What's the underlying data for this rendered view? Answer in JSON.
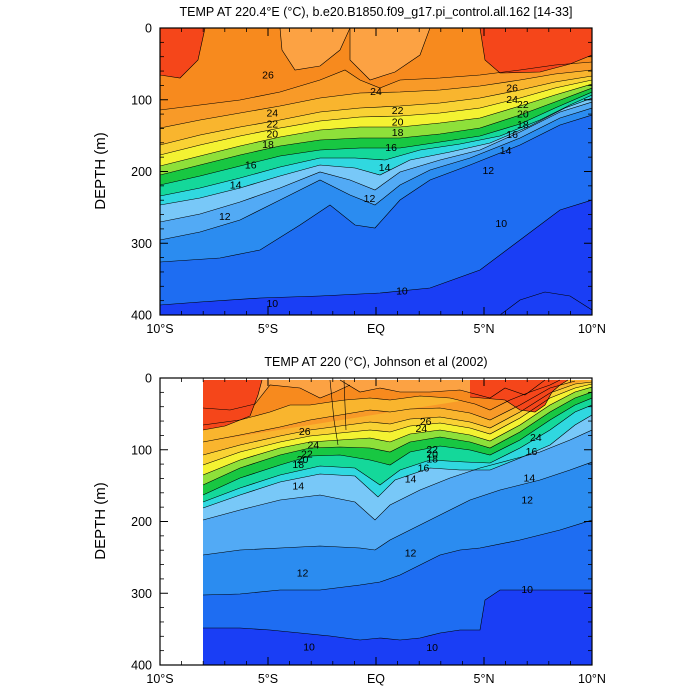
{
  "chart_data": [
    {
      "type": "contour",
      "title": "TEMP AT 220.4°E (°C), b.e20.B1850.f09_g17.pi_control.all.162 [14-33]",
      "ylabel": "DEPTH (m)",
      "xlabel": "",
      "x_ticks": [
        "10°S",
        "5°S",
        "EQ",
        "5°N",
        "10°N"
      ],
      "x_tick_values": [
        -10,
        -5,
        0,
        5,
        10
      ],
      "y_ticks": [
        "0",
        "100",
        "200",
        "300",
        "400"
      ],
      "y_tick_values": [
        0,
        100,
        200,
        300,
        400
      ],
      "xlim": [
        -10,
        10
      ],
      "ylim": [
        400,
        0
      ],
      "contour_interval": 1,
      "contour_labels": [
        {
          "text": "26",
          "x": -5.0,
          "y": 65
        },
        {
          "text": "26",
          "x": 6.3,
          "y": 83
        },
        {
          "text": "24",
          "x": 0.0,
          "y": 88
        },
        {
          "text": "24",
          "x": -4.8,
          "y": 118
        },
        {
          "text": "24",
          "x": 6.3,
          "y": 99
        },
        {
          "text": "22",
          "x": 1.0,
          "y": 114
        },
        {
          "text": "22",
          "x": -4.8,
          "y": 133
        },
        {
          "text": "22",
          "x": 6.8,
          "y": 106
        },
        {
          "text": "20",
          "x": 1.0,
          "y": 130
        },
        {
          "text": "20",
          "x": -4.8,
          "y": 147
        },
        {
          "text": "20",
          "x": 6.8,
          "y": 119
        },
        {
          "text": "18",
          "x": 1.0,
          "y": 145
        },
        {
          "text": "18",
          "x": -5.0,
          "y": 162
        },
        {
          "text": "18",
          "x": 6.8,
          "y": 134
        },
        {
          "text": "16",
          "x": 0.7,
          "y": 166
        },
        {
          "text": "16",
          "x": -5.8,
          "y": 190
        },
        {
          "text": "16",
          "x": 6.3,
          "y": 148
        },
        {
          "text": "14",
          "x": 6.0,
          "y": 170
        },
        {
          "text": "14",
          "x": -6.5,
          "y": 218
        },
        {
          "text": "14",
          "x": 0.4,
          "y": 194
        },
        {
          "text": "12",
          "x": 5.2,
          "y": 198
        },
        {
          "text": "12",
          "x": -0.3,
          "y": 237
        },
        {
          "text": "12",
          "x": -7.0,
          "y": 262
        },
        {
          "text": "10",
          "x": 5.8,
          "y": 272
        },
        {
          "text": "10",
          "x": 1.2,
          "y": 366
        },
        {
          "text": "10",
          "x": -4.8,
          "y": 383
        }
      ]
    },
    {
      "type": "contour",
      "title": "TEMP AT 220 (°C), Johnson et al (2002)",
      "ylabel": "DEPTH (m)",
      "xlabel": "",
      "x_ticks": [
        "10°S",
        "5°S",
        "EQ",
        "5°N",
        "10°N"
      ],
      "x_tick_values": [
        -10,
        -5,
        0,
        5,
        10
      ],
      "y_ticks": [
        "0",
        "100",
        "200",
        "300",
        "400"
      ],
      "y_tick_values": [
        0,
        100,
        200,
        300,
        400
      ],
      "xlim": [
        -10,
        10
      ],
      "ylim": [
        400,
        0
      ],
      "data_xrange": [
        -8,
        10
      ],
      "contour_interval": 1,
      "contour_labels": [
        {
          "text": "26",
          "x": 2.3,
          "y": 60
        },
        {
          "text": "26",
          "x": -3.3,
          "y": 74
        },
        {
          "text": "24",
          "x": 2.1,
          "y": 70
        },
        {
          "text": "24",
          "x": -2.9,
          "y": 93
        },
        {
          "text": "24",
          "x": 7.4,
          "y": 82
        },
        {
          "text": "22",
          "x": 2.6,
          "y": 99
        },
        {
          "text": "22",
          "x": -3.2,
          "y": 105
        },
        {
          "text": "20",
          "x": 2.6,
          "y": 105
        },
        {
          "text": "20",
          "x": -3.4,
          "y": 113
        },
        {
          "text": "18",
          "x": 2.6,
          "y": 112
        },
        {
          "text": "18",
          "x": -3.6,
          "y": 120
        },
        {
          "text": "16",
          "x": 2.2,
          "y": 125
        },
        {
          "text": "16",
          "x": 7.2,
          "y": 102
        },
        {
          "text": "14",
          "x": -3.6,
          "y": 150
        },
        {
          "text": "14",
          "x": 1.6,
          "y": 140
        },
        {
          "text": "14",
          "x": 7.1,
          "y": 139
        },
        {
          "text": "12",
          "x": 7.0,
          "y": 169
        },
        {
          "text": "12",
          "x": 1.6,
          "y": 243
        },
        {
          "text": "12",
          "x": -3.4,
          "y": 271
        },
        {
          "text": "10",
          "x": 7.0,
          "y": 294
        },
        {
          "text": "10",
          "x": 2.6,
          "y": 375
        },
        {
          "text": "10",
          "x": -3.1,
          "y": 374
        }
      ]
    }
  ]
}
